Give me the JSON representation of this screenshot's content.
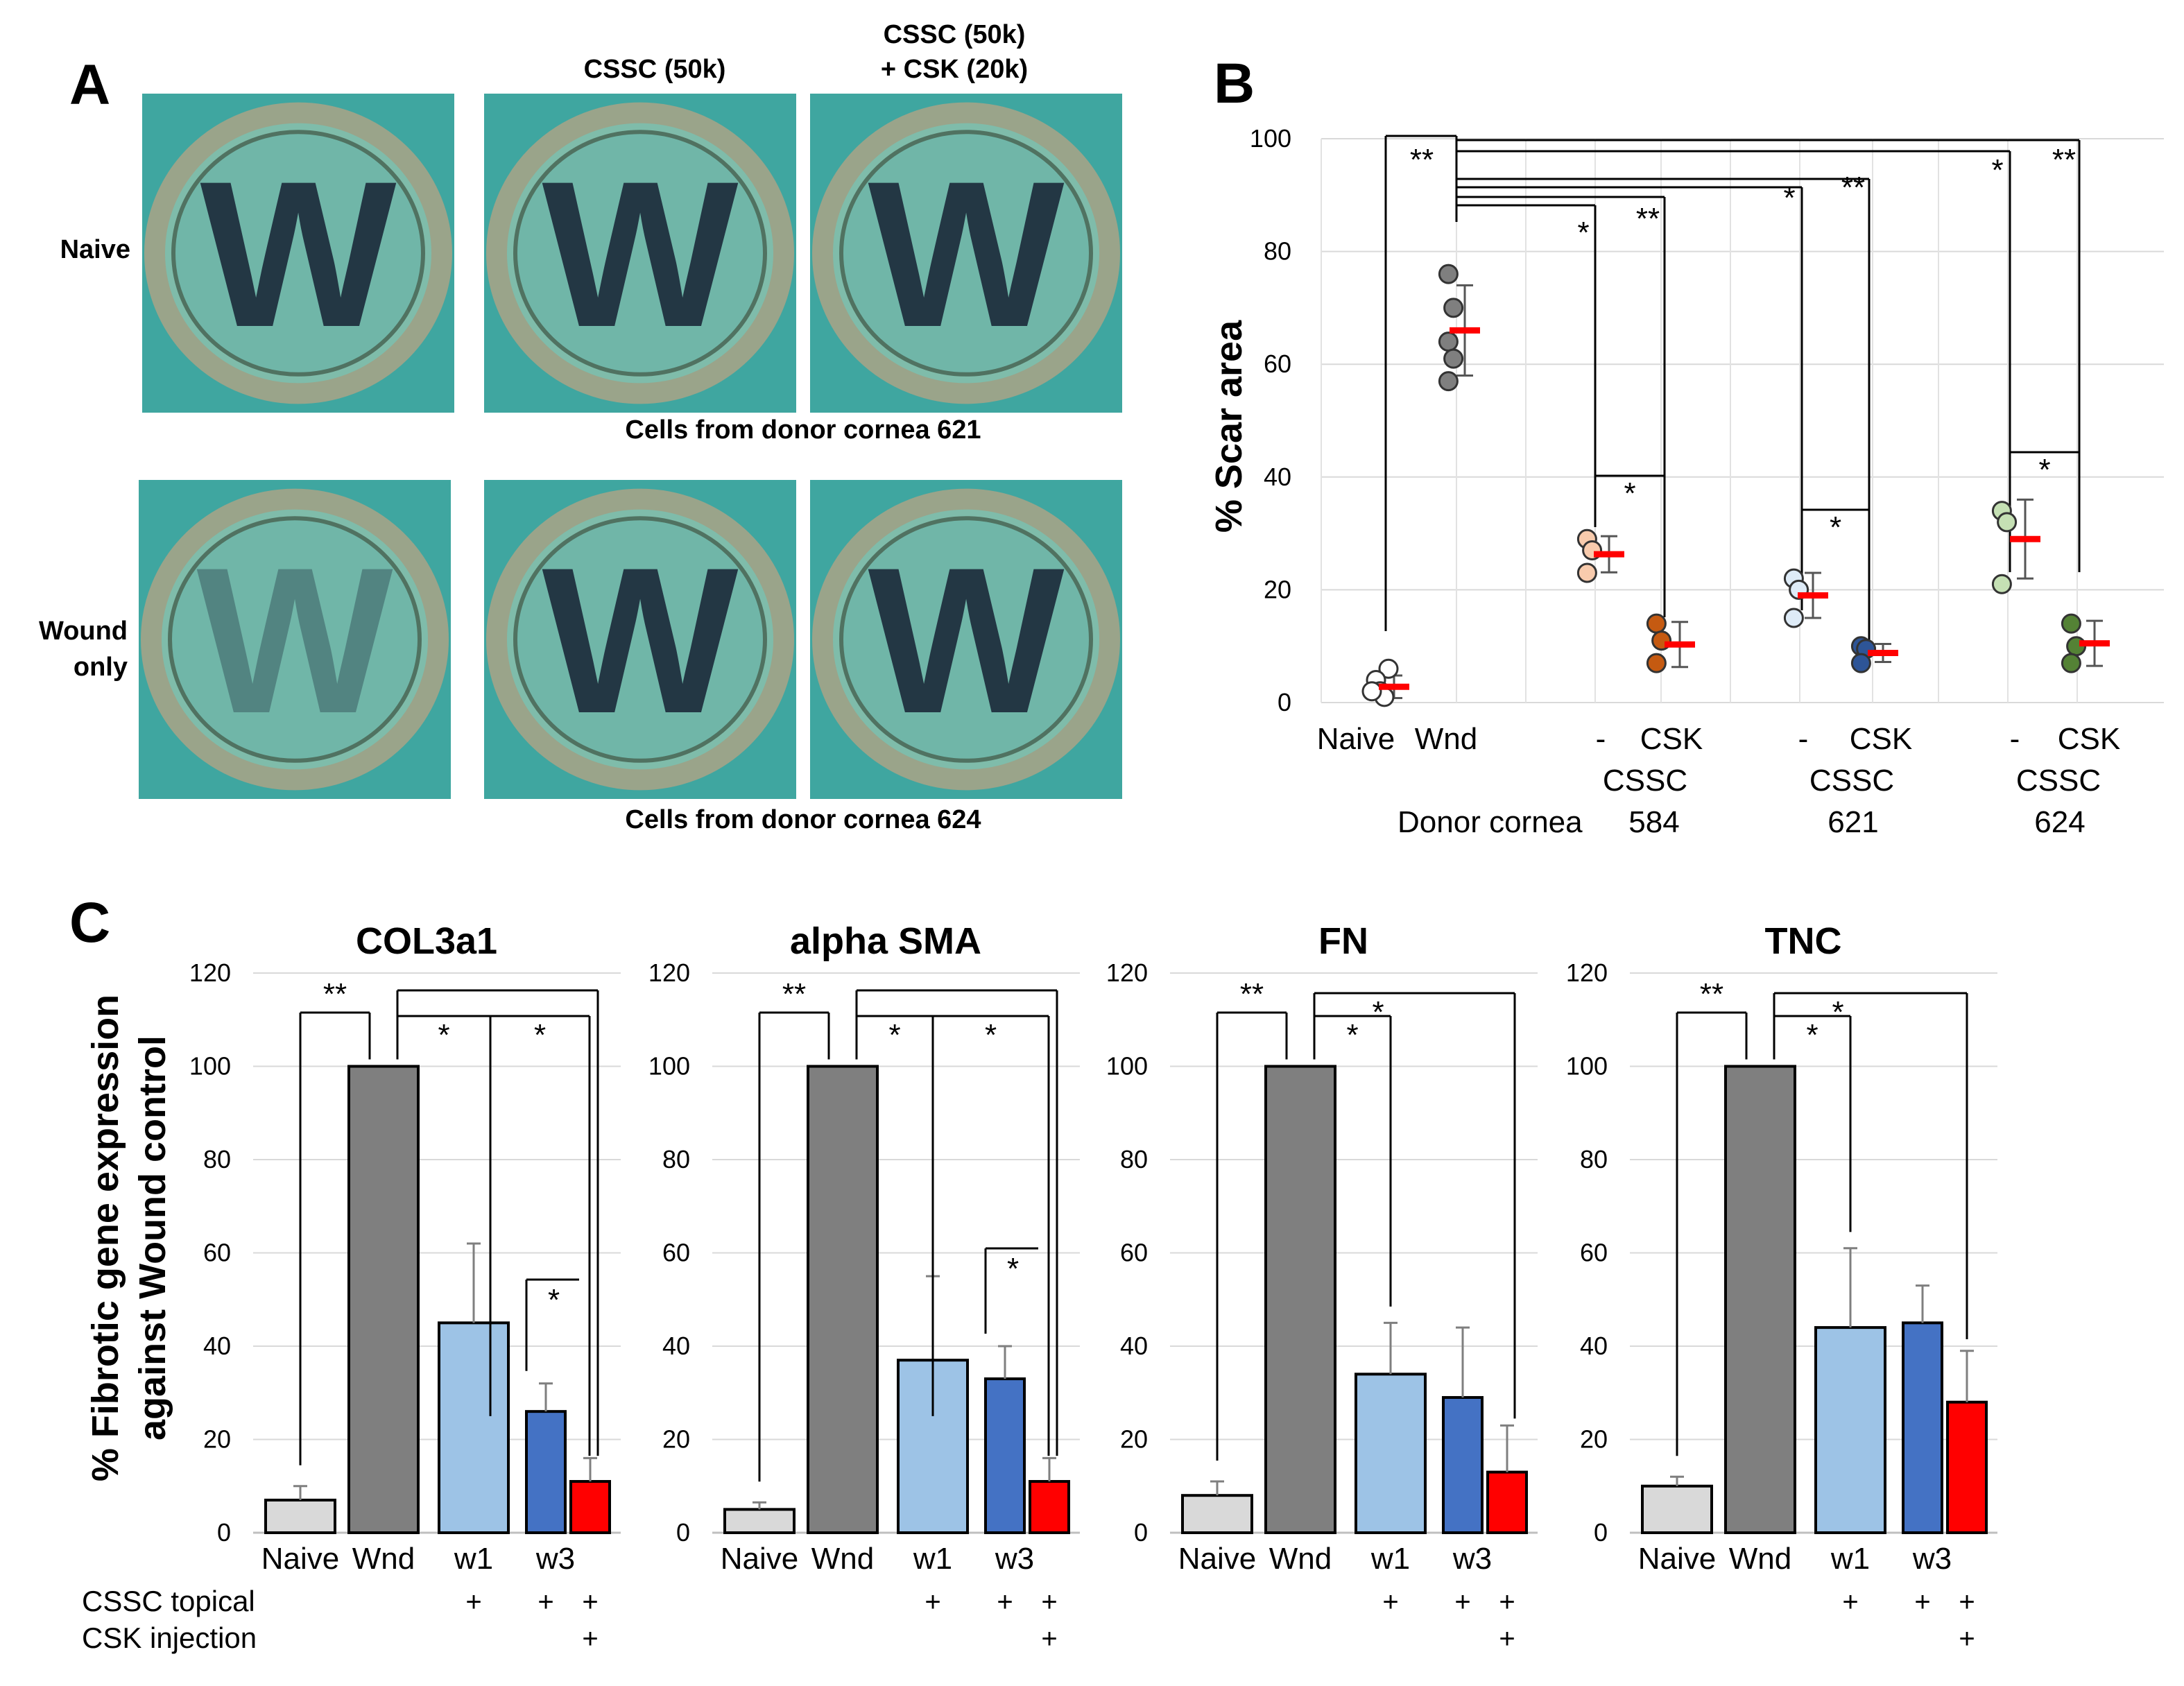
{
  "panel_a": {
    "letter": "A",
    "col_header_cssc": "CSSC (50k)",
    "col_header_combo_line1": "CSSC (50k)",
    "col_header_combo_line2": "+ CSK (20k)",
    "row_naive": "Naive",
    "row_wound_line1": "Wound",
    "row_wound_line2": "only",
    "caption_row1": "Cells from donor cornea 621",
    "caption_row2": "Cells from donor cornea 624",
    "photo_letter": "W",
    "colors": {
      "tissue_bg": "#3fa6a0",
      "ring": "#9aa48a",
      "letter": "#1b2a3a"
    }
  },
  "panel_b": {
    "letter": "B",
    "ylabel": "% Scar area",
    "yticks": [
      "100",
      "80",
      "60",
      "40",
      "20",
      "0"
    ],
    "cat_labels": [
      "Naive",
      "Wnd",
      "-",
      "CSK",
      "-",
      "CSK",
      "-",
      "CSK"
    ],
    "cssc_label": "CSSC",
    "donor_label": "Donor cornea",
    "donors": [
      "584",
      "621",
      "624"
    ],
    "sig_labels": [
      "**",
      "*",
      "**",
      "*",
      "**",
      "*",
      "**",
      "*",
      "*",
      "*"
    ]
  },
  "panel_c": {
    "letter": "C",
    "ylabel_line1": "% Fibrotic gene expression",
    "ylabel_line2": "against Wound control",
    "yticks": [
      "120",
      "100",
      "80",
      "60",
      "40",
      "20",
      "0"
    ],
    "genes": [
      "COL3a1",
      "alpha SMA",
      "FN",
      "TNC"
    ],
    "cat_labels": [
      "Naive",
      "Wnd",
      "w1",
      "w3"
    ],
    "treatment_cssc": "CSSC topical",
    "treatment_csk": "CSK injection",
    "plus": "+",
    "sig_double": "**",
    "sig_single": "*"
  },
  "chart_data": [
    {
      "type": "scatter",
      "title": "% Scar area",
      "ylabel": "% Scar area",
      "ylim": [
        0,
        100
      ],
      "categories": [
        "Naive",
        "Wnd",
        "584 -",
        "584 CSK",
        "621 -",
        "621 CSK",
        "624 -",
        "624 CSK"
      ],
      "series": [
        {
          "name": "Naive",
          "points": [
            6,
            4,
            2,
            1,
            2
          ],
          "mean": 2.8,
          "sd": 2.0,
          "color": "#ffffff"
        },
        {
          "name": "Wnd",
          "points": [
            76,
            70,
            64,
            61,
            57
          ],
          "mean": 66,
          "sd": 8,
          "color": "#7f7f7f"
        },
        {
          "name": "CSSC 584 -",
          "points": [
            29,
            27,
            23
          ],
          "mean": 26.3,
          "sd": 3.2,
          "color": "#f8cbad"
        },
        {
          "name": "CSSC 584 CSK",
          "points": [
            14,
            11,
            7
          ],
          "mean": 10.3,
          "sd": 4,
          "color": "#c55a11"
        },
        {
          "name": "CSSC 621 -",
          "points": [
            22,
            20,
            15
          ],
          "mean": 19,
          "sd": 4,
          "color": "#deebf7"
        },
        {
          "name": "CSSC 621 CSK",
          "points": [
            10,
            9.5,
            7
          ],
          "mean": 8.8,
          "sd": 1.6,
          "color": "#2e5597"
        },
        {
          "name": "CSSC 624 -",
          "points": [
            34,
            32,
            21
          ],
          "mean": 29,
          "sd": 7,
          "color": "#c5e0b4"
        },
        {
          "name": "CSSC 624 CSK",
          "points": [
            14,
            10,
            7
          ],
          "mean": 10.5,
          "sd": 4,
          "color": "#548235"
        }
      ],
      "mean_marker_color": "#ff0000",
      "xlabel": "Donor cornea"
    },
    {
      "type": "bar",
      "title": "COL3a1",
      "categories": [
        "Naive",
        "Wnd",
        "w1",
        "w3",
        "w3+CSK"
      ],
      "values": [
        7,
        100,
        45,
        26,
        11
      ],
      "errors": [
        3,
        0,
        17,
        6,
        5
      ],
      "ylim": [
        0,
        120
      ],
      "colors": [
        "#d9d9d9",
        "#7f7f7f",
        "#9dc3e6",
        "#4472c4",
        "#ff0000"
      ]
    },
    {
      "type": "bar",
      "title": "alpha SMA",
      "categories": [
        "Naive",
        "Wnd",
        "w1",
        "w3",
        "w3+CSK"
      ],
      "values": [
        5,
        100,
        37,
        33,
        11
      ],
      "errors": [
        1.5,
        0,
        18,
        7,
        5
      ],
      "ylim": [
        0,
        120
      ],
      "colors": [
        "#d9d9d9",
        "#7f7f7f",
        "#9dc3e6",
        "#4472c4",
        "#ff0000"
      ]
    },
    {
      "type": "bar",
      "title": "FN",
      "categories": [
        "Naive",
        "Wnd",
        "w1",
        "w3",
        "w3+CSK"
      ],
      "values": [
        8,
        100,
        34,
        29,
        13
      ],
      "errors": [
        3,
        0,
        11,
        15,
        10
      ],
      "ylim": [
        0,
        120
      ],
      "colors": [
        "#d9d9d9",
        "#7f7f7f",
        "#9dc3e6",
        "#4472c4",
        "#ff0000"
      ]
    },
    {
      "type": "bar",
      "title": "TNC",
      "categories": [
        "Naive",
        "Wnd",
        "w1",
        "w3",
        "w3+CSK"
      ],
      "values": [
        10,
        100,
        44,
        45,
        28
      ],
      "errors": [
        2,
        0,
        17,
        8,
        11
      ],
      "ylim": [
        0,
        120
      ],
      "colors": [
        "#d9d9d9",
        "#7f7f7f",
        "#9dc3e6",
        "#4472c4",
        "#ff0000"
      ]
    }
  ]
}
